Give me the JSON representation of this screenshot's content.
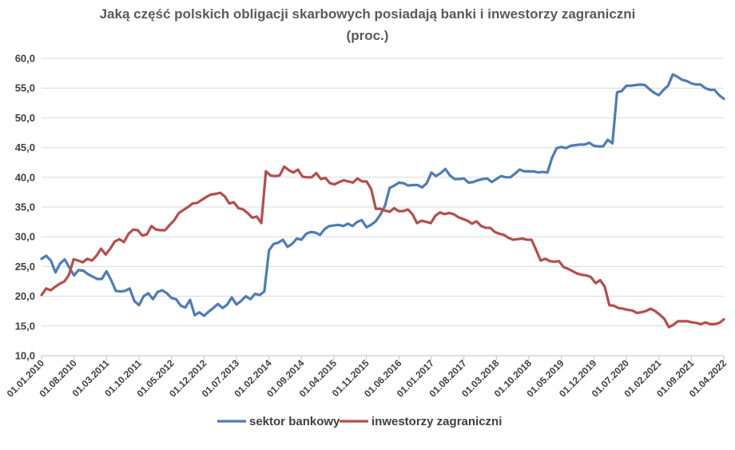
{
  "chart_data": {
    "type": "line",
    "title": "Jaką część polskich obligacji skarbowych posiadają banki i inwestorzy zagraniczni",
    "subtitle": "(proc.)",
    "ylim": [
      10,
      60
    ],
    "yticks": [
      "10,0",
      "15,0",
      "20,0",
      "25,0",
      "30,0",
      "35,0",
      "40,0",
      "45,0",
      "50,0",
      "55,0",
      "60,0"
    ],
    "x_start": "2010-01",
    "x_end": "2022-04",
    "xticks": [
      "01.01.2010",
      "01.08.2010",
      "01.03.2011",
      "01.10.2011",
      "01.05.2012",
      "01.12.2012",
      "01.07.2013",
      "01.02.2014",
      "01.09.2014",
      "01.04.2015",
      "01.11.2015",
      "01.06.2016",
      "01.01.2017",
      "01.08.2017",
      "01.03.2018",
      "01.10.2018",
      "01.05.2019",
      "01.12.2019",
      "01.07.2020",
      "01.02.2021",
      "01.09.2021",
      "01.04.2022"
    ],
    "grid": true,
    "legend": "bottom",
    "series": [
      {
        "name": "sektor bankowy",
        "color": "#4f7cb4",
        "values": [
          26.3,
          26.8,
          26.0,
          24.0,
          25.5,
          26.2,
          24.8,
          23.5,
          24.4,
          24.3,
          23.7,
          23.3,
          22.9,
          22.9,
          24.2,
          22.7,
          20.9,
          20.8,
          20.9,
          21.3,
          19.2,
          18.5,
          20.0,
          20.5,
          19.5,
          20.7,
          21.0,
          20.5,
          19.7,
          19.5,
          18.4,
          18.1,
          19.4,
          16.8,
          17.3,
          16.7,
          17.4,
          18.0,
          18.7,
          18.0,
          18.6,
          19.8,
          18.6,
          19.2,
          20.0,
          19.5,
          20.4,
          20.2,
          20.8,
          27.7,
          28.8,
          29.0,
          29.5,
          28.3,
          28.8,
          29.7,
          29.5,
          30.5,
          30.8,
          30.7,
          30.3,
          31.3,
          31.8,
          31.9,
          32.0,
          31.8,
          32.2,
          31.8,
          32.5,
          32.8,
          31.6,
          32.0,
          32.6,
          33.7,
          35.2,
          38.2,
          38.6,
          39.1,
          39.0,
          38.6,
          38.7,
          38.7,
          38.3,
          39.0,
          40.8,
          40.2,
          40.7,
          41.4,
          40.3,
          39.7,
          39.7,
          39.8,
          39.1,
          39.2,
          39.5,
          39.7,
          39.8,
          39.2,
          39.7,
          40.2,
          40.0,
          40.0,
          40.6,
          41.3,
          41.0,
          41.0,
          41.0,
          40.8,
          40.9,
          40.8,
          43.3,
          44.9,
          45.1,
          44.9,
          45.3,
          45.4,
          45.5,
          45.5,
          45.8,
          45.3,
          45.2,
          45.2,
          46.3,
          45.7,
          54.3,
          54.5,
          55.4,
          55.4,
          55.5,
          55.6,
          55.5,
          54.8,
          54.2,
          53.8,
          54.7,
          55.4,
          57.3,
          56.9,
          56.4,
          56.2,
          55.8,
          55.6,
          55.6,
          55.0,
          54.7,
          54.7,
          53.8,
          53.2
        ]
      },
      {
        "name": "inwestorzy zagraniczni",
        "color": "#b44e4c",
        "values": [
          20.2,
          21.3,
          21.0,
          21.6,
          22.1,
          22.5,
          23.6,
          26.2,
          26.0,
          25.7,
          26.3,
          26.0,
          26.8,
          28.0,
          27.0,
          28.0,
          29.2,
          29.6,
          29.1,
          30.5,
          31.2,
          31.1,
          30.2,
          30.4,
          31.8,
          31.2,
          31.1,
          31.1,
          32.0,
          32.8,
          34.0,
          34.5,
          35.0,
          35.6,
          35.7,
          36.2,
          36.7,
          37.1,
          37.2,
          37.4,
          36.8,
          35.6,
          35.8,
          34.8,
          34.6,
          34.0,
          33.2,
          33.4,
          32.3,
          41.0,
          40.3,
          40.2,
          40.3,
          41.8,
          41.2,
          40.8,
          41.3,
          40.1,
          40.0,
          40.0,
          40.7,
          39.7,
          39.9,
          39.0,
          38.8,
          39.2,
          39.5,
          39.3,
          39.1,
          39.8,
          39.3,
          39.3,
          38.0,
          34.7,
          34.7,
          34.4,
          34.2,
          34.8,
          34.3,
          34.3,
          34.6,
          33.8,
          32.3,
          32.7,
          32.5,
          32.3,
          33.5,
          34.1,
          33.8,
          34.0,
          33.8,
          33.3,
          33.0,
          32.7,
          32.2,
          32.6,
          31.8,
          31.5,
          31.5,
          30.8,
          30.5,
          30.3,
          29.8,
          29.5,
          29.6,
          29.7,
          29.5,
          29.5,
          27.8,
          26.0,
          26.3,
          25.9,
          25.8,
          25.9,
          24.9,
          24.6,
          24.2,
          23.8,
          23.6,
          23.5,
          23.2,
          22.2,
          22.7,
          21.6,
          18.5,
          18.4,
          18.0,
          17.9,
          17.7,
          17.6,
          17.2,
          17.3,
          17.5,
          17.9,
          17.5,
          16.9,
          16.2,
          14.8,
          15.2,
          15.8,
          15.8,
          15.8,
          15.6,
          15.5,
          15.3,
          15.6,
          15.3,
          15.3,
          15.5,
          16.1
        ]
      }
    ]
  }
}
